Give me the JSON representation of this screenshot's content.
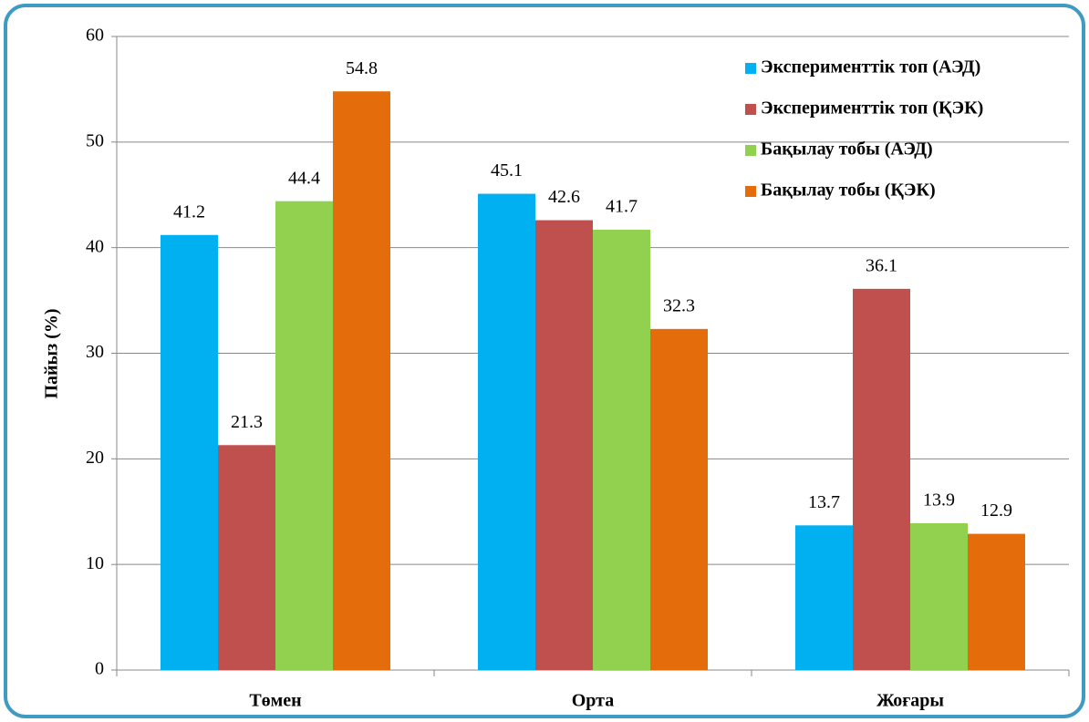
{
  "chart_data": {
    "type": "bar",
    "y_label": "Пайыз (%)",
    "categories": [
      "Төмен",
      "Орта",
      "Жоғары"
    ],
    "series": [
      {
        "name": "Эксперименттік топ (АЭД)",
        "color": "#00b0f0",
        "values": [
          41.2,
          45.1,
          13.7
        ]
      },
      {
        "name": "Эксперименттік топ (ҚЭК)",
        "color": "#c0504d",
        "values": [
          21.3,
          42.6,
          36.1
        ]
      },
      {
        "name": "Бақылау тобы (АЭД)",
        "color": "#92d050",
        "values": [
          44.4,
          41.7,
          13.9
        ]
      },
      {
        "name": "Бақылау тобы (ҚЭК)",
        "color": "#e46c0a",
        "values": [
          54.8,
          32.3,
          12.9
        ]
      }
    ],
    "ylim": [
      0,
      60
    ],
    "yticks": [
      0,
      10,
      20,
      30,
      40,
      50,
      60
    ],
    "grid": true,
    "legend": "upper right"
  }
}
